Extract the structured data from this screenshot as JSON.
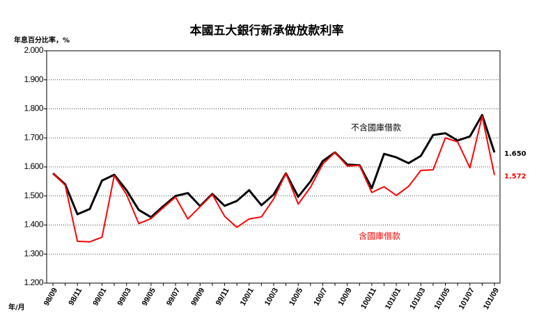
{
  "chart_data": {
    "type": "line",
    "title": "本國五大銀行新承做放款利率",
    "y_label": "年息百分比率，%",
    "x_label": "年/月",
    "categories": [
      "98/09",
      null,
      "98/11",
      null,
      "99/01",
      null,
      "99/03",
      null,
      "99/05",
      null,
      "99/07",
      null,
      "99/09",
      null,
      "99/11",
      null,
      "100/1",
      null,
      "100/3",
      null,
      "100/5",
      null,
      "100/7",
      null,
      "100/9",
      null,
      "100/11",
      null,
      "101/01",
      null,
      "101/03",
      null,
      "101/05",
      null,
      "101/07",
      null,
      "101/09"
    ],
    "series": [
      {
        "name": "不含國庫借款",
        "color": "#000000",
        "values": [
          1.578,
          1.54,
          1.437,
          1.455,
          1.553,
          1.573,
          1.52,
          1.452,
          1.427,
          1.465,
          1.5,
          1.51,
          1.465,
          1.507,
          1.466,
          1.483,
          1.52,
          1.468,
          1.505,
          1.578,
          1.497,
          1.55,
          1.62,
          1.65,
          1.608,
          1.606,
          1.527,
          1.645,
          1.633,
          1.613,
          1.638,
          1.71,
          1.716,
          1.691,
          1.705,
          1.779,
          1.65
        ],
        "value_labels": [
          null,
          null,
          null,
          null,
          null,
          null,
          null,
          null,
          null,
          null,
          null,
          null,
          null,
          null,
          null,
          null,
          null,
          null,
          null,
          null,
          null,
          null,
          null,
          null,
          null,
          null,
          null,
          null,
          null,
          null,
          null,
          null,
          null,
          null,
          null,
          null,
          "1.650"
        ]
      },
      {
        "name": "含國庫借款",
        "color": "#ff0000",
        "values": [
          1.578,
          1.537,
          1.344,
          1.342,
          1.358,
          1.57,
          1.505,
          1.405,
          1.422,
          1.46,
          1.496,
          1.421,
          1.463,
          1.505,
          1.43,
          1.392,
          1.421,
          1.428,
          1.49,
          1.578,
          1.472,
          1.53,
          1.61,
          1.65,
          1.603,
          1.605,
          1.512,
          1.532,
          1.502,
          1.533,
          1.588,
          1.59,
          1.7,
          1.686,
          1.597,
          1.775,
          1.572
        ],
        "value_labels": [
          null,
          null,
          null,
          null,
          null,
          null,
          null,
          null,
          null,
          null,
          null,
          null,
          null,
          null,
          null,
          null,
          null,
          null,
          null,
          null,
          null,
          null,
          null,
          null,
          null,
          null,
          null,
          null,
          null,
          null,
          null,
          null,
          null,
          null,
          null,
          null,
          "1.572"
        ]
      }
    ],
    "ylim": [
      1.2,
      2.0
    ],
    "yticks": [
      {
        "value": 1.2,
        "label": "1.200"
      },
      {
        "value": 1.3,
        "label": "1.300"
      },
      {
        "value": 1.4,
        "label": "1.400"
      },
      {
        "value": 1.5,
        "label": "1.500"
      },
      {
        "value": 1.6,
        "label": "1.600"
      },
      {
        "value": 1.7,
        "label": "1.700"
      },
      {
        "value": 1.8,
        "label": "1.800"
      },
      {
        "value": 1.9,
        "label": "1.900"
      },
      {
        "value": 2.0,
        "label": "2.000"
      }
    ],
    "grid": true
  }
}
